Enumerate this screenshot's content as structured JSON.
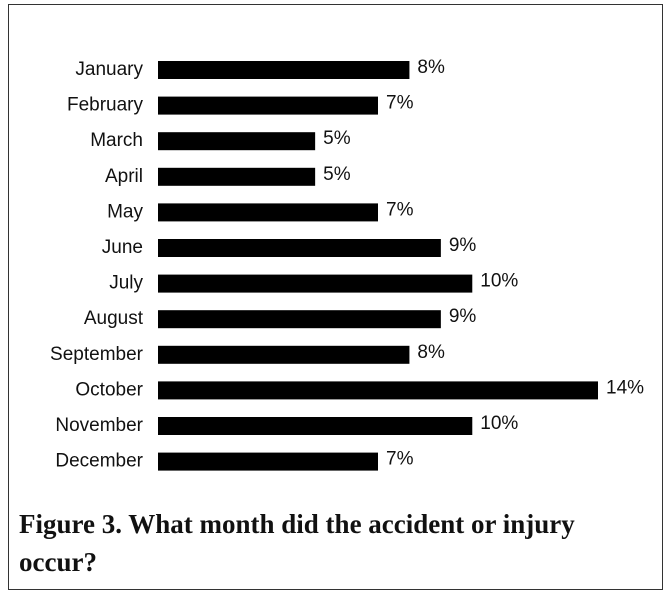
{
  "chart_data": {
    "type": "bar",
    "orientation": "horizontal",
    "title": "Figure 3. What month did the accident or injury occur?",
    "categories": [
      "January",
      "February",
      "March",
      "April",
      "May",
      "June",
      "July",
      "August",
      "September",
      "October",
      "November",
      "December"
    ],
    "values": [
      8,
      7,
      5,
      5,
      7,
      9,
      10,
      9,
      8,
      14,
      10,
      7
    ],
    "value_labels": [
      "8%",
      "7%",
      "5%",
      "5%",
      "7%",
      "9%",
      "10%",
      "9%",
      "8%",
      "14%",
      "10%",
      "7%"
    ],
    "color": "#000000"
  }
}
